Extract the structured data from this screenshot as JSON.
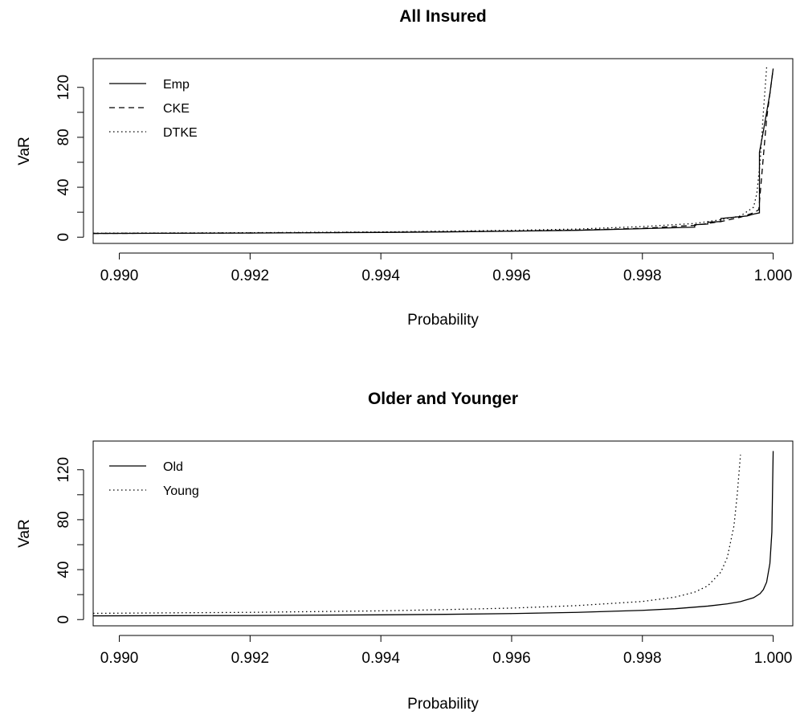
{
  "chart_data": [
    {
      "type": "line",
      "title": "All Insured",
      "xlabel": "Probability",
      "ylabel": "VaR",
      "xlim": [
        0.9896,
        1.0003
      ],
      "ylim": [
        -5,
        143
      ],
      "xticks": [
        "0.990",
        "0.992",
        "0.994",
        "0.996",
        "0.998",
        "1.000"
      ],
      "xtick_values": [
        0.99,
        0.992,
        0.994,
        0.996,
        0.998,
        1.0
      ],
      "yticks": [
        "0",
        "40",
        "80",
        "120"
      ],
      "ytick_values": [
        0,
        40,
        80,
        120
      ],
      "legend_position": "top-left",
      "series": [
        {
          "name": "Emp",
          "line_style": "solid",
          "x": [
            0.9896,
            0.992,
            0.994,
            0.995,
            0.996,
            0.997,
            0.998,
            0.9988,
            0.9988,
            0.999,
            0.999,
            0.9992,
            0.9992,
            0.9994,
            0.9996,
            0.9997,
            0.99979,
            0.99979,
            0.99985,
            0.9999,
            0.99995,
            1.0
          ],
          "y": [
            3,
            3.3,
            3.8,
            4.2,
            4.8,
            5.5,
            6.8,
            8,
            10,
            10.5,
            12,
            12.5,
            15,
            16,
            17,
            18.5,
            19.5,
            68,
            85,
            100,
            115,
            135
          ]
        },
        {
          "name": "CKE",
          "line_style": "dashed",
          "x": [
            0.9896,
            0.992,
            0.994,
            0.996,
            0.997,
            0.998,
            0.9988,
            0.9992,
            0.9995,
            0.9997,
            0.99978,
            0.9999,
            0.99995,
            1.0
          ],
          "y": [
            3,
            3.4,
            3.9,
            4.9,
            5.7,
            7.1,
            9.5,
            12.5,
            16,
            19.5,
            22,
            95,
            115,
            135
          ]
        },
        {
          "name": "DTKE",
          "line_style": "dotted",
          "x": [
            0.9896,
            0.992,
            0.994,
            0.996,
            0.997,
            0.998,
            0.9988,
            0.9992,
            0.9995,
            0.9997,
            0.99975,
            0.9998,
            0.99985,
            0.9999
          ],
          "y": [
            3.2,
            3.6,
            4.2,
            5.5,
            6.5,
            8.5,
            11,
            14,
            17,
            24,
            35,
            60,
            100,
            136
          ]
        }
      ]
    },
    {
      "type": "line",
      "title": "Older and Younger",
      "xlabel": "Probability",
      "ylabel": "VaR",
      "xlim": [
        0.9896,
        1.0003
      ],
      "ylim": [
        -5,
        143
      ],
      "xticks": [
        "0.990",
        "0.992",
        "0.994",
        "0.996",
        "0.998",
        "1.000"
      ],
      "xtick_values": [
        0.99,
        0.992,
        0.994,
        0.996,
        0.998,
        1.0
      ],
      "yticks": [
        "0",
        "40",
        "80",
        "120"
      ],
      "ytick_values": [
        0,
        40,
        80,
        120
      ],
      "legend_position": "top-left",
      "series": [
        {
          "name": "Old",
          "line_style": "solid",
          "x": [
            0.9896,
            0.992,
            0.994,
            0.995,
            0.996,
            0.997,
            0.998,
            0.9985,
            0.999,
            0.9993,
            0.9995,
            0.9997,
            0.9998,
            0.99985,
            0.9999,
            0.99995,
            0.99998,
            1.0
          ],
          "y": [
            3,
            3.3,
            3.8,
            4.2,
            4.8,
            5.8,
            7.4,
            8.7,
            10.8,
            12.6,
            14.4,
            17.5,
            20.8,
            24,
            30,
            45,
            70,
            135
          ]
        },
        {
          "name": "Young",
          "line_style": "dotted",
          "x": [
            0.9896,
            0.992,
            0.994,
            0.995,
            0.996,
            0.997,
            0.998,
            0.9985,
            0.9988,
            0.999,
            0.9992,
            0.9993,
            0.9994,
            0.99945,
            0.9995
          ],
          "y": [
            5,
            5.8,
            7,
            8,
            9.2,
            11.2,
            14.5,
            18,
            22,
            27,
            38,
            50,
            75,
            100,
            132
          ]
        }
      ]
    }
  ]
}
